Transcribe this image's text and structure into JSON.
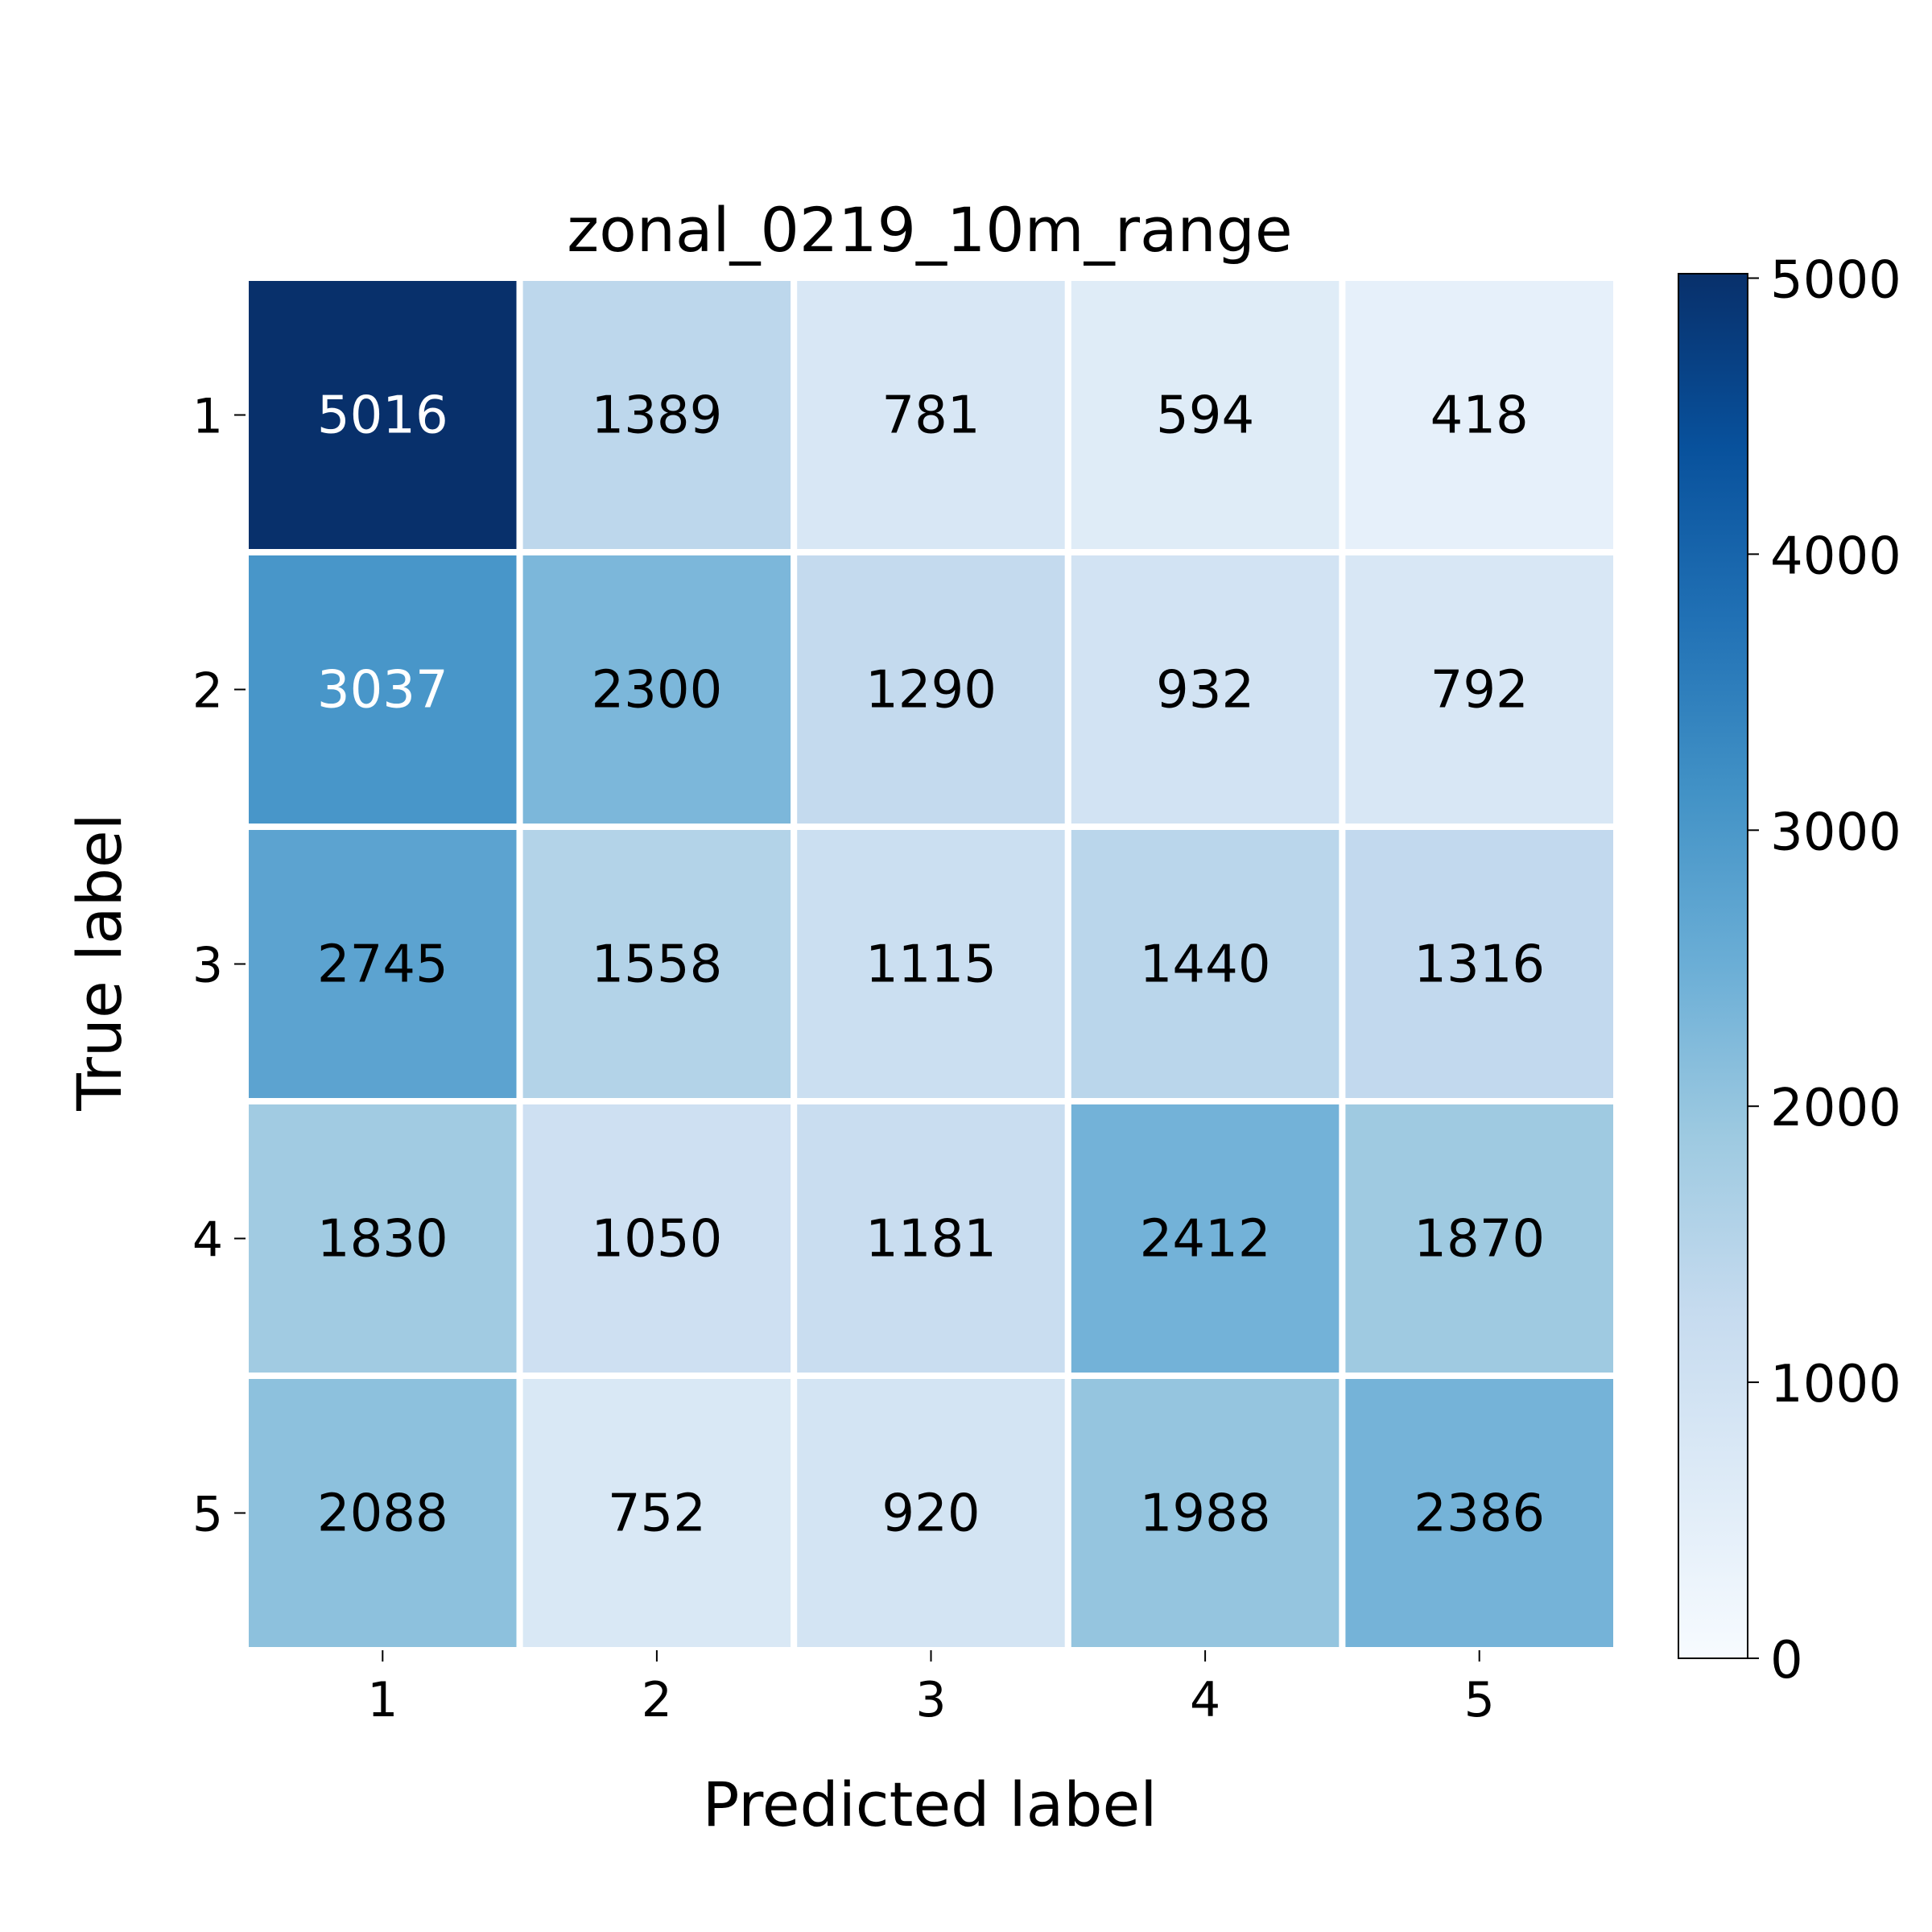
{
  "chart_data": {
    "type": "heatmap",
    "title": "zonal_0219_10m_range",
    "xlabel": "Predicted label",
    "ylabel": "True label",
    "x_categories": [
      "1",
      "2",
      "3",
      "4",
      "5"
    ],
    "y_categories": [
      "1",
      "2",
      "3",
      "4",
      "5"
    ],
    "values": [
      [
        5016,
        1389,
        781,
        594,
        418
      ],
      [
        3037,
        2300,
        1290,
        932,
        792
      ],
      [
        2745,
        1558,
        1115,
        1440,
        1316
      ],
      [
        1830,
        1050,
        1181,
        2412,
        1870
      ],
      [
        2088,
        752,
        920,
        1988,
        2386
      ]
    ],
    "colorbar": {
      "colormap": "Blues",
      "range": [
        0,
        5016
      ],
      "ticks": [
        0,
        1000,
        2000,
        3000,
        4000,
        5000
      ],
      "tick_labels": [
        "0",
        "1000",
        "2000",
        "3000",
        "4000",
        "5000"
      ]
    }
  }
}
